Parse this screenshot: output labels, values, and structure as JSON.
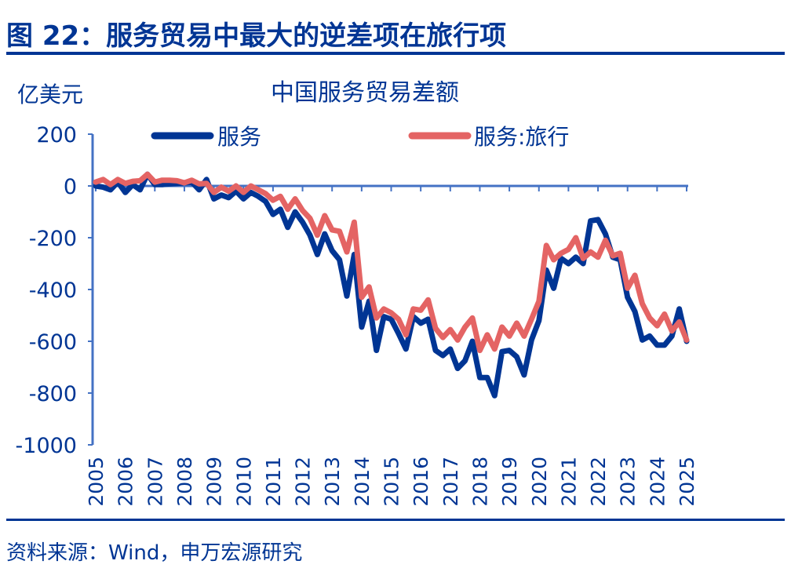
{
  "figure_title": "图 22：服务贸易中最大的逆差项在旅行项",
  "source": "资料来源：Wind，申万宏源研究",
  "chart_data": {
    "type": "line",
    "title": "中国服务贸易差额",
    "ylabel": "亿美元",
    "xlabel": "",
    "ylim": [
      -1000,
      200
    ],
    "yticks": [
      200,
      0,
      -200,
      -400,
      -600,
      -800,
      -1000
    ],
    "xlim": [
      2005,
      2025
    ],
    "xticks": [
      "2005",
      "2006",
      "2007",
      "2008",
      "2009",
      "2010",
      "2011",
      "2012",
      "2013",
      "2014",
      "2015",
      "2016",
      "2017",
      "2018",
      "2019",
      "2020",
      "2021",
      "2022",
      "2023",
      "2024",
      "2025"
    ],
    "x_frequency": "quarterly",
    "x_start": "2005Q1",
    "legend_position": "top",
    "grid": false,
    "series": [
      {
        "name": "服务",
        "color": "#003594",
        "values": [
          0,
          -5,
          -15,
          15,
          -25,
          5,
          -15,
          45,
          5,
          5,
          8,
          10,
          12,
          15,
          -15,
          25,
          -50,
          -35,
          -45,
          -20,
          -50,
          -25,
          -40,
          -60,
          -110,
          -90,
          -160,
          -100,
          -140,
          -190,
          -265,
          -185,
          -250,
          -285,
          -425,
          -265,
          -545,
          -445,
          -635,
          -505,
          -515,
          -570,
          -630,
          -505,
          -530,
          -515,
          -635,
          -655,
          -630,
          -705,
          -675,
          -600,
          -740,
          -740,
          -810,
          -640,
          -635,
          -660,
          -730,
          -595,
          -520,
          -325,
          -395,
          -280,
          -300,
          -275,
          -300,
          -135,
          -130,
          -185,
          -275,
          -285,
          -430,
          -485,
          -595,
          -580,
          -615,
          -615,
          -580,
          -475,
          -600
        ]
      },
      {
        "name": "服务:旅行",
        "color": "#E46464",
        "values": [
          15,
          25,
          5,
          25,
          10,
          18,
          20,
          45,
          15,
          22,
          22,
          20,
          12,
          22,
          8,
          10,
          -25,
          -5,
          -20,
          0,
          -25,
          0,
          -15,
          -30,
          -55,
          -40,
          -90,
          -50,
          -95,
          -125,
          -190,
          -115,
          -170,
          -175,
          -255,
          -140,
          -430,
          -390,
          -510,
          -475,
          -490,
          -515,
          -575,
          -475,
          -480,
          -440,
          -550,
          -585,
          -555,
          -595,
          -545,
          -510,
          -635,
          -575,
          -630,
          -545,
          -580,
          -530,
          -580,
          -515,
          -445,
          -230,
          -285,
          -260,
          -245,
          -200,
          -280,
          -255,
          -275,
          -210,
          -270,
          -260,
          -395,
          -345,
          -455,
          -510,
          -540,
          -495,
          -560,
          -525,
          -595
        ]
      }
    ]
  }
}
